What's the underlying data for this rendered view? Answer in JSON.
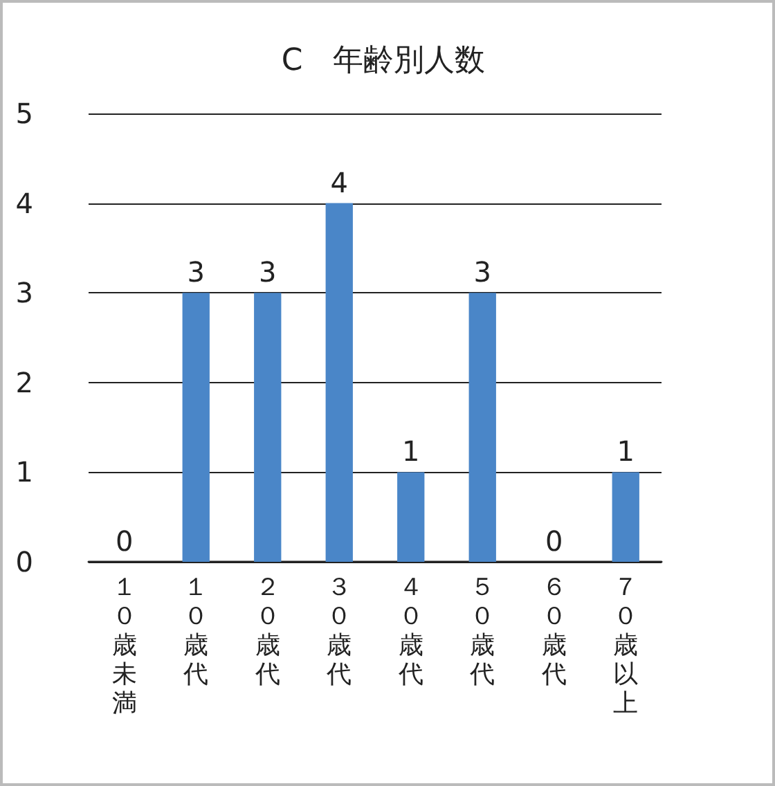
{
  "chart_data": {
    "type": "bar",
    "title": "C　年齢別人数",
    "categories": [
      "１０歳未満",
      "１０歳代",
      "２０歳代",
      "３０歳代",
      "４０歳代",
      "５０歳代",
      "６０歳代",
      "７０歳以上"
    ],
    "values": [
      0,
      3,
      3,
      4,
      1,
      3,
      0,
      1
    ],
    "color": "#4a86c8",
    "ylim": [
      0,
      5
    ],
    "yticks": [
      0,
      1,
      2,
      3,
      4,
      5
    ],
    "grid": "y",
    "data_labels": true
  }
}
